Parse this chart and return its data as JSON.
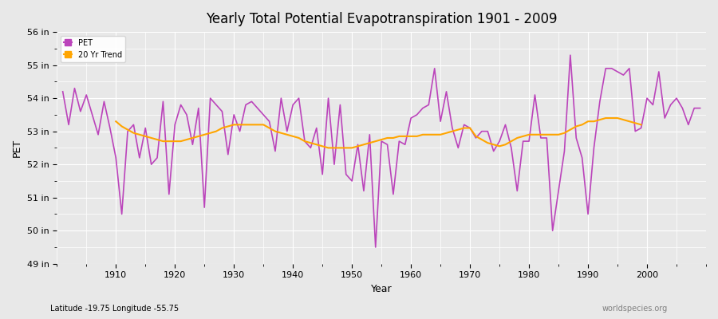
{
  "title": "Yearly Total Potential Evapotranspiration 1901 - 2009",
  "xlabel": "Year",
  "ylabel": "PET",
  "subtitle": "Latitude -19.75 Longitude -55.75",
  "watermark": "worldspecies.org",
  "pet_color": "#bb44bb",
  "trend_color": "#FFA500",
  "bg_color": "#e8e8e8",
  "plot_bg_color": "#e8e8e8",
  "ylim": [
    49,
    56
  ],
  "yticks": [
    49,
    50,
    51,
    52,
    53,
    54,
    55,
    56
  ],
  "ytick_labels": [
    "49 in",
    "50 in",
    "51 in",
    "52 in",
    "53 in",
    "54 in",
    "55 in",
    "56 in"
  ],
  "years": [
    1901,
    1902,
    1903,
    1904,
    1905,
    1906,
    1907,
    1908,
    1909,
    1910,
    1911,
    1912,
    1913,
    1914,
    1915,
    1916,
    1917,
    1918,
    1919,
    1920,
    1921,
    1922,
    1923,
    1924,
    1925,
    1926,
    1927,
    1928,
    1929,
    1930,
    1931,
    1932,
    1933,
    1934,
    1935,
    1936,
    1937,
    1938,
    1939,
    1940,
    1941,
    1942,
    1943,
    1944,
    1945,
    1946,
    1947,
    1948,
    1949,
    1950,
    1951,
    1952,
    1953,
    1954,
    1955,
    1956,
    1957,
    1958,
    1959,
    1960,
    1961,
    1962,
    1963,
    1964,
    1965,
    1966,
    1967,
    1968,
    1969,
    1970,
    1971,
    1972,
    1973,
    1974,
    1975,
    1976,
    1977,
    1978,
    1979,
    1980,
    1981,
    1982,
    1983,
    1984,
    1985,
    1986,
    1987,
    1988,
    1989,
    1990,
    1991,
    1992,
    1993,
    1994,
    1995,
    1996,
    1997,
    1998,
    1999,
    2000,
    2001,
    2002,
    2003,
    2004,
    2005,
    2006,
    2007,
    2008,
    2009
  ],
  "pet_values": [
    54.2,
    53.2,
    54.3,
    53.6,
    54.1,
    53.5,
    52.9,
    53.9,
    53.1,
    52.2,
    50.5,
    53.0,
    53.2,
    52.2,
    53.1,
    52.0,
    52.2,
    53.9,
    51.1,
    53.2,
    53.8,
    53.5,
    52.6,
    53.7,
    50.7,
    54.0,
    53.8,
    53.6,
    52.3,
    53.5,
    53.0,
    53.8,
    53.9,
    53.7,
    53.5,
    53.3,
    52.4,
    54.0,
    53.0,
    53.8,
    54.0,
    52.7,
    52.5,
    53.1,
    51.7,
    54.0,
    52.0,
    53.8,
    51.7,
    51.5,
    52.6,
    51.2,
    52.9,
    49.5,
    52.7,
    52.6,
    51.1,
    52.7,
    52.6,
    53.4,
    53.5,
    53.7,
    53.8,
    54.9,
    53.3,
    54.2,
    53.1,
    52.5,
    53.2,
    53.1,
    52.8,
    53.0,
    53.0,
    52.4,
    52.7,
    53.2,
    52.5,
    51.2,
    52.7,
    52.7,
    54.1,
    52.8,
    52.8,
    50.0,
    51.2,
    52.4,
    55.3,
    52.8,
    52.2,
    50.5,
    52.5,
    53.9,
    54.9,
    54.9,
    54.8,
    54.7,
    54.9,
    53.0,
    53.1,
    54.0,
    53.8,
    54.8,
    53.4,
    53.8,
    54.0,
    53.7,
    53.2,
    53.7,
    53.7
  ],
  "trend_values": [
    null,
    null,
    null,
    null,
    null,
    null,
    null,
    null,
    null,
    53.3,
    53.15,
    53.05,
    52.95,
    52.9,
    52.85,
    52.8,
    52.75,
    52.7,
    52.7,
    52.7,
    52.7,
    52.75,
    52.8,
    52.85,
    52.9,
    52.95,
    53.0,
    53.1,
    53.15,
    53.2,
    53.2,
    53.2,
    53.2,
    53.2,
    53.2,
    53.1,
    53.0,
    52.95,
    52.9,
    52.85,
    52.8,
    52.7,
    52.65,
    52.6,
    52.55,
    52.5,
    52.5,
    52.5,
    52.5,
    52.5,
    52.55,
    52.6,
    52.65,
    52.7,
    52.75,
    52.8,
    52.8,
    52.85,
    52.85,
    52.85,
    52.85,
    52.9,
    52.9,
    52.9,
    52.9,
    52.95,
    53.0,
    53.05,
    53.1,
    53.1,
    52.85,
    52.75,
    52.65,
    52.6,
    52.55,
    52.6,
    52.7,
    52.8,
    52.85,
    52.9,
    52.9,
    52.9,
    52.9,
    52.9,
    52.9,
    52.95,
    53.05,
    53.15,
    53.2,
    53.3,
    53.3,
    53.35,
    53.4,
    53.4,
    53.4,
    53.35,
    53.3,
    53.25,
    53.2,
    null,
    null,
    null,
    null,
    null,
    null,
    null,
    null,
    null,
    null
  ]
}
